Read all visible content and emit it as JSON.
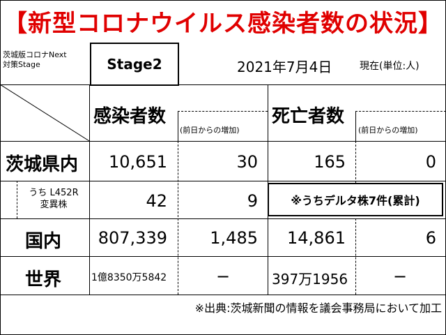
{
  "title": "【新型コロナウイルス感染者数の状況】",
  "stage_label": [
    "茨城版コロナNext",
    "対策Stage"
  ],
  "stage_value": "Stage2",
  "date": "2021年7月4日",
  "date_suffix": "現在(単位:人)",
  "columns": {
    "cases": "感染者数",
    "cases_change": "(前日からの増加)",
    "deaths": "死亡者数",
    "deaths_change": "(前日からの増加)"
  },
  "rows": {
    "ibaraki": {
      "label": "茨城県内",
      "cases": "10,651",
      "cases_change": "30",
      "deaths": "165",
      "deaths_change": "0"
    },
    "variant": {
      "label_line1": "うち L452R",
      "label_line2": "変異株",
      "cases": "42",
      "cases_change": "9",
      "note": "※うちデルタ株7件(累計)"
    },
    "japan": {
      "label": "国内",
      "cases": "807,339",
      "cases_change": "1,485",
      "deaths": "14,861",
      "deaths_change": "6"
    },
    "world": {
      "label": "世界",
      "cases": "1億8350万5842",
      "cases_change": "−",
      "deaths": "397万1956",
      "deaths_change": "−"
    }
  },
  "source": "※出典:茨城新聞の情報を議会事務局において加工"
}
